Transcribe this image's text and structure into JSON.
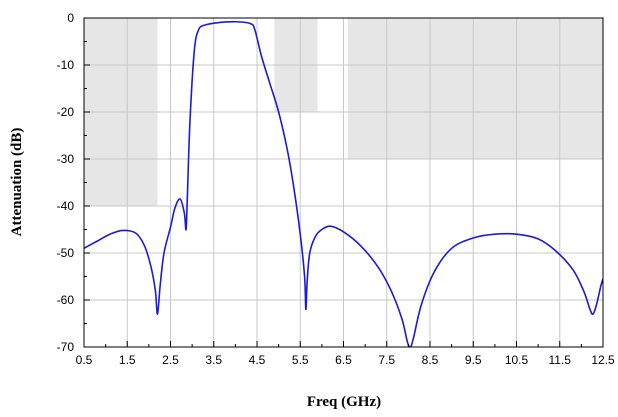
{
  "chart_data": {
    "type": "line",
    "title": "",
    "xlabel": "Freq (GHz)",
    "ylabel": "Attenuation (dB)",
    "xlim": [
      0.5,
      12.5
    ],
    "ylim": [
      -70,
      0
    ],
    "grid": true,
    "legend": "none",
    "x_ticks": [
      0.5,
      1.5,
      2.5,
      3.5,
      4.5,
      5.5,
      6.5,
      7.5,
      8.5,
      9.5,
      10.5,
      11.5,
      12.5
    ],
    "x_tick_labels": [
      "0.5",
      "1.5",
      "2.5",
      "3.5",
      "4.5",
      "5.5",
      "6.5",
      "7.5",
      "8.5",
      "9.5",
      "10.5",
      "11.5",
      "12.5"
    ],
    "y_ticks": [
      0,
      -10,
      -20,
      -30,
      -40,
      -50,
      -60,
      -70
    ],
    "y_tick_labels": [
      "0",
      "-10",
      "-20",
      "-30",
      "-40",
      "-50",
      "-60",
      "-70"
    ],
    "colors": {
      "series": "#1a1adc",
      "mask": "#e6e6e6",
      "grid": "#c8c8c8",
      "frame": "#000000"
    },
    "mask_regions": [
      {
        "x": [
          0.5,
          2.2
        ],
        "y": [
          -40,
          0
        ]
      },
      {
        "x": [
          4.9,
          5.9
        ],
        "y": [
          -20,
          0
        ]
      },
      {
        "x": [
          6.6,
          12.5
        ],
        "y": [
          -30,
          0
        ]
      }
    ],
    "series": [
      {
        "color": "#1a1adc",
        "x": [
          0.5,
          0.8,
          1.1,
          1.4,
          1.7,
          1.9,
          2.05,
          2.15,
          2.2,
          2.26,
          2.35,
          2.5,
          2.6,
          2.72,
          2.82,
          2.86,
          2.89,
          2.95,
          3.05,
          3.15,
          3.3,
          3.6,
          4.0,
          4.35,
          4.45,
          4.6,
          4.8,
          5.0,
          5.2,
          5.35,
          5.5,
          5.6,
          5.63,
          5.66,
          5.72,
          5.85,
          6.0,
          6.2,
          6.5,
          6.9,
          7.3,
          7.6,
          7.85,
          7.98,
          8.05,
          8.12,
          8.3,
          8.6,
          9.0,
          9.5,
          10.0,
          10.5,
          11.0,
          11.4,
          11.8,
          12.05,
          12.2,
          12.27,
          12.35,
          12.45,
          12.5
        ],
        "y": [
          -49,
          -47.5,
          -46,
          -45.2,
          -45.8,
          -48.5,
          -53,
          -58,
          -63,
          -57,
          -50,
          -44.5,
          -40.5,
          -38.5,
          -41.5,
          -45,
          -38,
          -22,
          -7,
          -2.5,
          -1.5,
          -1.0,
          -0.8,
          -1.2,
          -2.5,
          -8,
          -14,
          -20,
          -28,
          -36,
          -46,
          -55,
          -62,
          -56,
          -50,
          -46.5,
          -45,
          -44.3,
          -45.5,
          -48.5,
          -53,
          -58,
          -64,
          -69,
          -70,
          -68,
          -61,
          -54,
          -49,
          -46.8,
          -46.0,
          -46.0,
          -47,
          -49.5,
          -53.5,
          -58,
          -62,
          -63,
          -61,
          -57,
          -55.5
        ]
      }
    ]
  }
}
